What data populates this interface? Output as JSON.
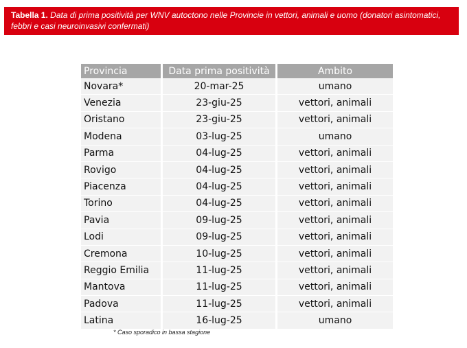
{
  "caption": {
    "label": "Tabella 1.",
    "text": "Data di prima positività per WNV autoctono nelle Provincie in vettori, animali e uomo (donatori asintomatici, febbri e casi neuroinvasivi confermati)"
  },
  "table": {
    "headers": [
      "Provincia",
      "Data prima positività",
      "Ambito"
    ],
    "rows": [
      [
        "Novara*",
        "20-mar-25",
        "umano"
      ],
      [
        "Venezia",
        "23-giu-25",
        "vettori, animali"
      ],
      [
        "Oristano",
        "23-giu-25",
        "vettori, animali"
      ],
      [
        "Modena",
        "03-lug-25",
        "umano"
      ],
      [
        "Parma",
        "04-lug-25",
        "vettori, animali"
      ],
      [
        "Rovigo",
        "04-lug-25",
        "vettori, animali"
      ],
      [
        "Piacenza",
        "04-lug-25",
        "vettori, animali"
      ],
      [
        "Torino",
        "04-lug-25",
        "vettori, animali"
      ],
      [
        "Pavia",
        "09-lug-25",
        "vettori, animali"
      ],
      [
        "Lodi",
        "09-lug-25",
        "vettori, animali"
      ],
      [
        "Cremona",
        "10-lug-25",
        "vettori, animali"
      ],
      [
        "Reggio Emilia",
        "11-lug-25",
        "vettori, animali"
      ],
      [
        "Mantova",
        "11-lug-25",
        "vettori, animali"
      ],
      [
        "Padova",
        "11-lug-25",
        "vettori, animali"
      ],
      [
        "Latina",
        "16-lug-25",
        "umano"
      ]
    ]
  },
  "footnote": "* Caso sporadico in bassa stagione",
  "colors": {
    "caption_bg": "#d8000f",
    "header_bg": "#a6a6a6",
    "row_bg": "#f2f2f2"
  }
}
